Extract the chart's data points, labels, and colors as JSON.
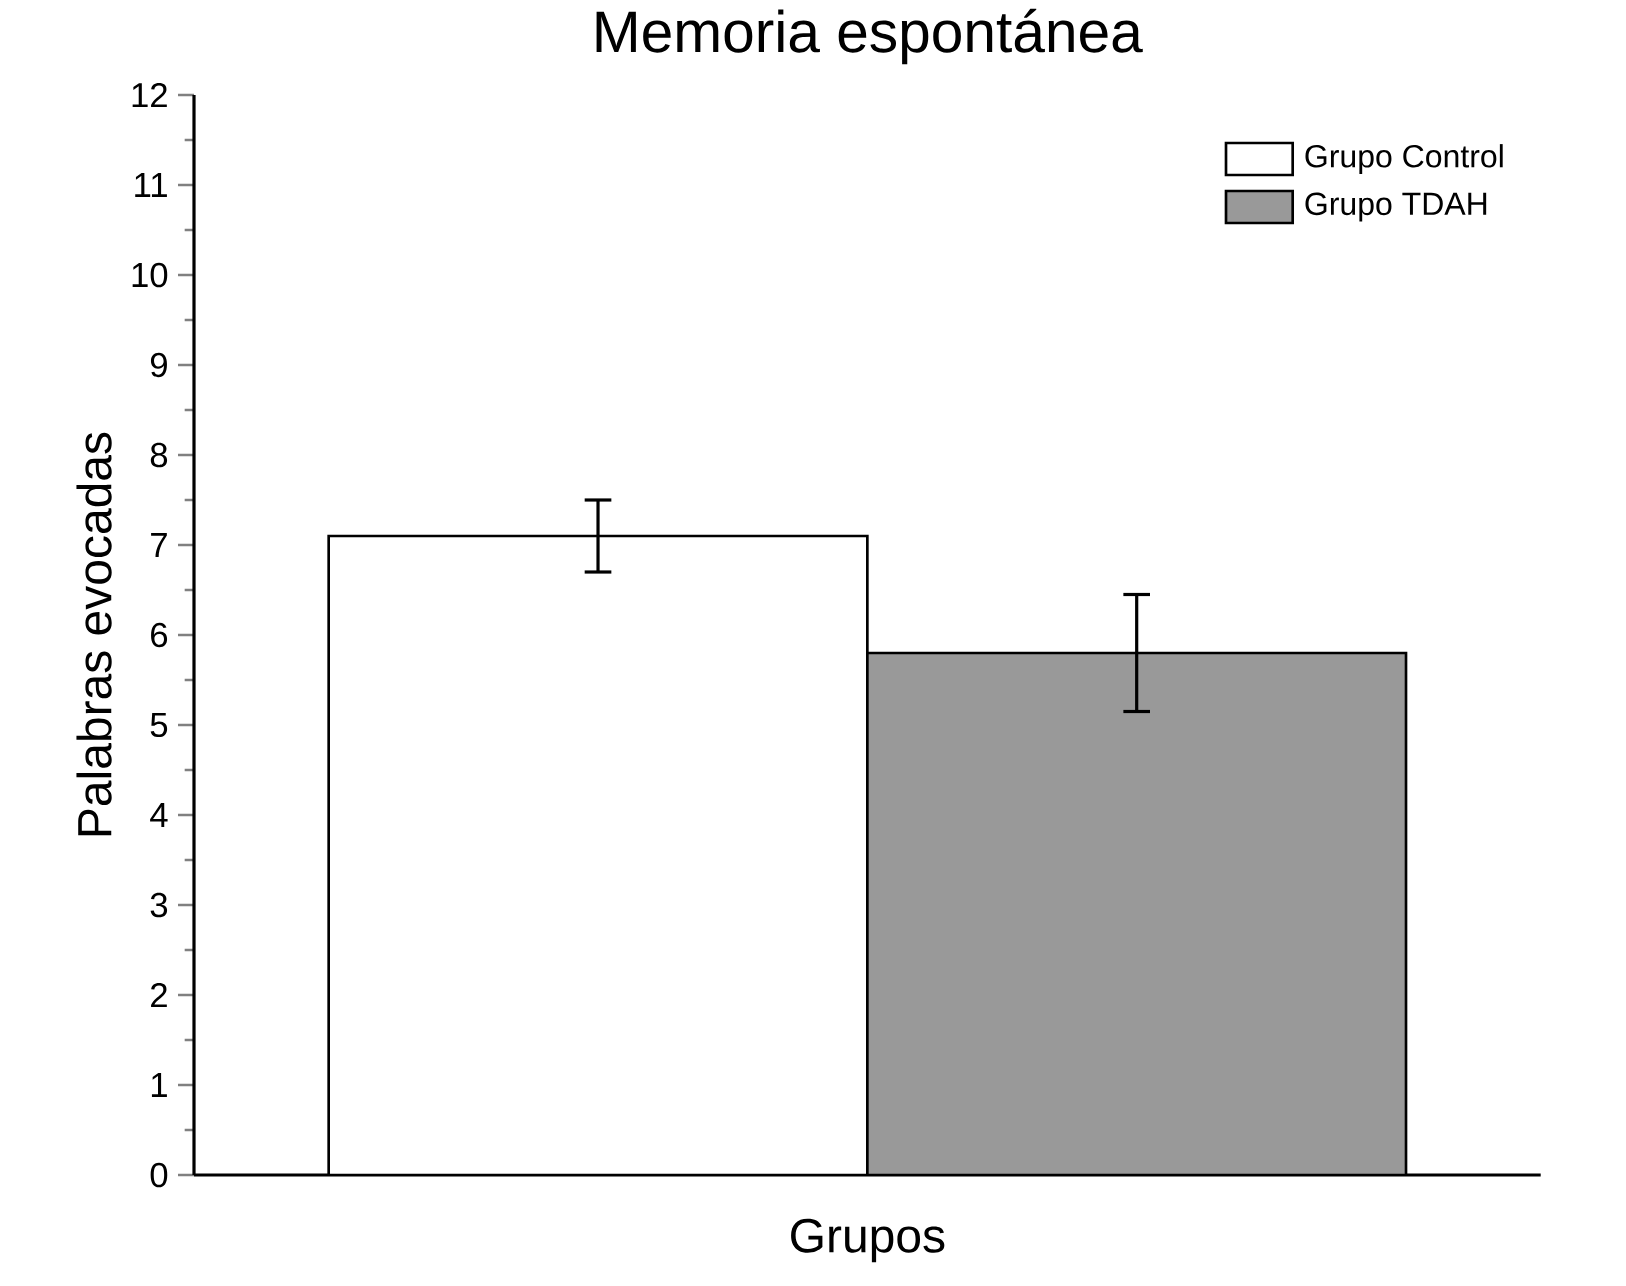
{
  "chart_data": {
    "type": "bar",
    "title": "Memoria espontánea",
    "xlabel": "Grupos",
    "ylabel": "Palabras evocadas",
    "categories": [
      null
    ],
    "series": [
      {
        "name": "Grupo Control",
        "color": "#ffffff",
        "values": [
          7.1
        ],
        "errors": [
          0.4
        ]
      },
      {
        "name": "Grupo TDAH",
        "color": "#999999",
        "values": [
          5.8
        ],
        "errors": [
          0.65
        ]
      }
    ],
    "ylim": [
      0,
      12
    ],
    "yticks": [
      0,
      1,
      2,
      3,
      4,
      5,
      6,
      7,
      8,
      9,
      10,
      11,
      12
    ],
    "legend": "top right",
    "grid": false
  }
}
